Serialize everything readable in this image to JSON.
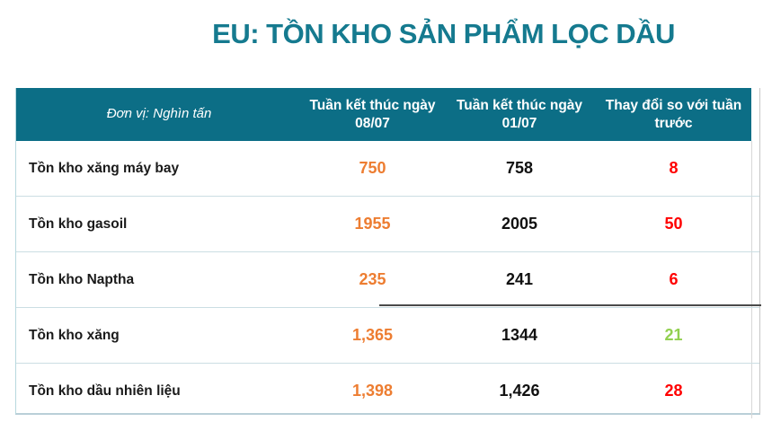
{
  "title": "EU: TỒN KHO SẢN PHẨM LỌC DẦU",
  "colors": {
    "title_teal": "#157A8F",
    "header_bg": "#0C6E86",
    "header_text": "#FFFFFF",
    "current_week_orange": "#ED7D31",
    "previous_week_black": "#111111",
    "change_increase_red": "#FF0000",
    "change_decrease_green": "#92D050",
    "row_divider": "#CBDEE3"
  },
  "table": {
    "unit_label": "Đơn vị: Nghìn tấn",
    "col_headers": [
      {
        "line1": "Tuần kết thúc ngày",
        "line2": "08/07"
      },
      {
        "line1": "Tuần kết thúc ngày",
        "line2": "01/07"
      },
      {
        "line1": "Thay đổi so với tuần",
        "line2": "trước"
      }
    ],
    "rows": [
      {
        "label": "Tồn kho xăng máy bay",
        "current": "750",
        "previous": "758",
        "change": "8",
        "change_color": "red"
      },
      {
        "label": "Tồn kho gasoil",
        "current": "1955",
        "previous": "2005",
        "change": "50",
        "change_color": "red"
      },
      {
        "label": "Tồn kho Naptha",
        "current": "235",
        "previous": "241",
        "change": "6",
        "change_color": "red"
      },
      {
        "label": "Tồn kho xăng",
        "current": "1,365",
        "previous": "1344",
        "change": "21",
        "change_color": "green"
      },
      {
        "label": "Tồn kho dầu nhiên liệu",
        "current": "1,398",
        "previous": "1,426",
        "change": "28",
        "change_color": "red"
      }
    ]
  },
  "chart_data": {
    "type": "table",
    "title": "EU: TỒN KHO SẢN PHẨM LỌC DẦU",
    "unit": "Nghìn tấn",
    "columns": [
      "Đơn vị: Nghìn tấn",
      "Tuần kết thúc ngày 08/07",
      "Tuần kết thúc ngày 01/07",
      "Thay đổi so với tuần trước"
    ],
    "rows": [
      {
        "label": "Tồn kho xăng máy bay",
        "week_08_07": 750,
        "week_01_07": 758,
        "change": 8
      },
      {
        "label": "Tồn kho gasoil",
        "week_08_07": 1955,
        "week_01_07": 2005,
        "change": 50
      },
      {
        "label": "Tồn kho Naptha",
        "week_08_07": 235,
        "week_01_07": 241,
        "change": 6
      },
      {
        "label": "Tồn kho xăng",
        "week_08_07": 1365,
        "week_01_07": 1344,
        "change": 21
      },
      {
        "label": "Tồn kho dầu nhiên liệu",
        "week_08_07": 1398,
        "week_01_07": 1426,
        "change": 28
      }
    ]
  }
}
